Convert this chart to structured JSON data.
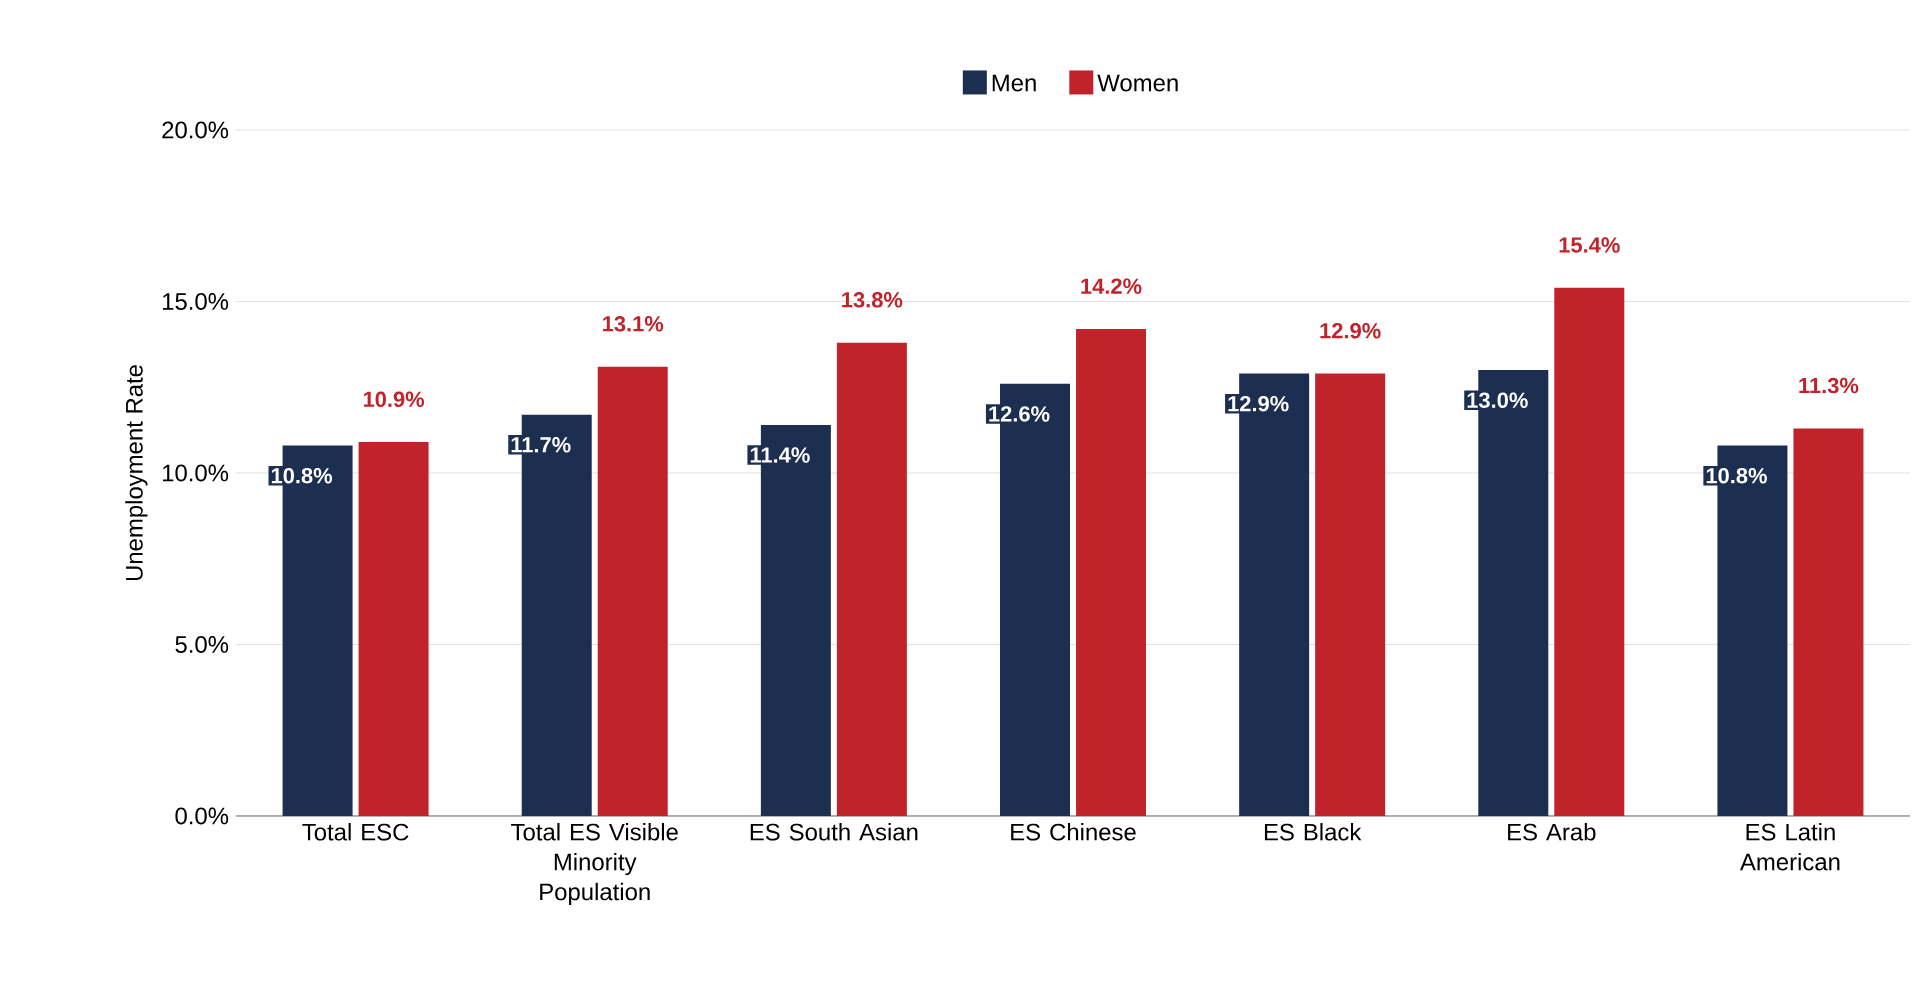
{
  "chart_data": {
    "type": "bar",
    "ylabel": "Unemployment Rate",
    "categories": [
      "Total ESC",
      "Total ES Visible Minority Population",
      "ES South Asian",
      "ES Chinese",
      "ES Black",
      "ES Arab",
      "ES Latin American"
    ],
    "series": [
      {
        "name": "Men",
        "color": "#1c2f51",
        "values": [
          10.8,
          11.7,
          11.4,
          12.6,
          12.9,
          13.0,
          10.8
        ],
        "value_labels": [
          "10.8%",
          "11.7%",
          "11.4%",
          "12.6%",
          "12.9%",
          "13.0%",
          "10.8%"
        ]
      },
      {
        "name": "Women",
        "color": "#c0242a",
        "values": [
          10.9,
          13.1,
          13.8,
          14.2,
          12.9,
          15.4,
          11.3
        ],
        "value_labels": [
          "10.9%",
          "13.1%",
          "13.8%",
          "14.2%",
          "12.9%",
          "15.4%",
          "11.3%"
        ]
      }
    ],
    "ylim": [
      0,
      20
    ],
    "yticks": [
      {
        "value": 0,
        "label": "0.0%"
      },
      {
        "value": 5,
        "label": "5.0%"
      },
      {
        "value": 10,
        "label": "10.0%"
      },
      {
        "value": 15,
        "label": "15.0%"
      },
      {
        "value": 20,
        "label": "20.0%"
      }
    ],
    "grid": "y",
    "legend": "top"
  }
}
